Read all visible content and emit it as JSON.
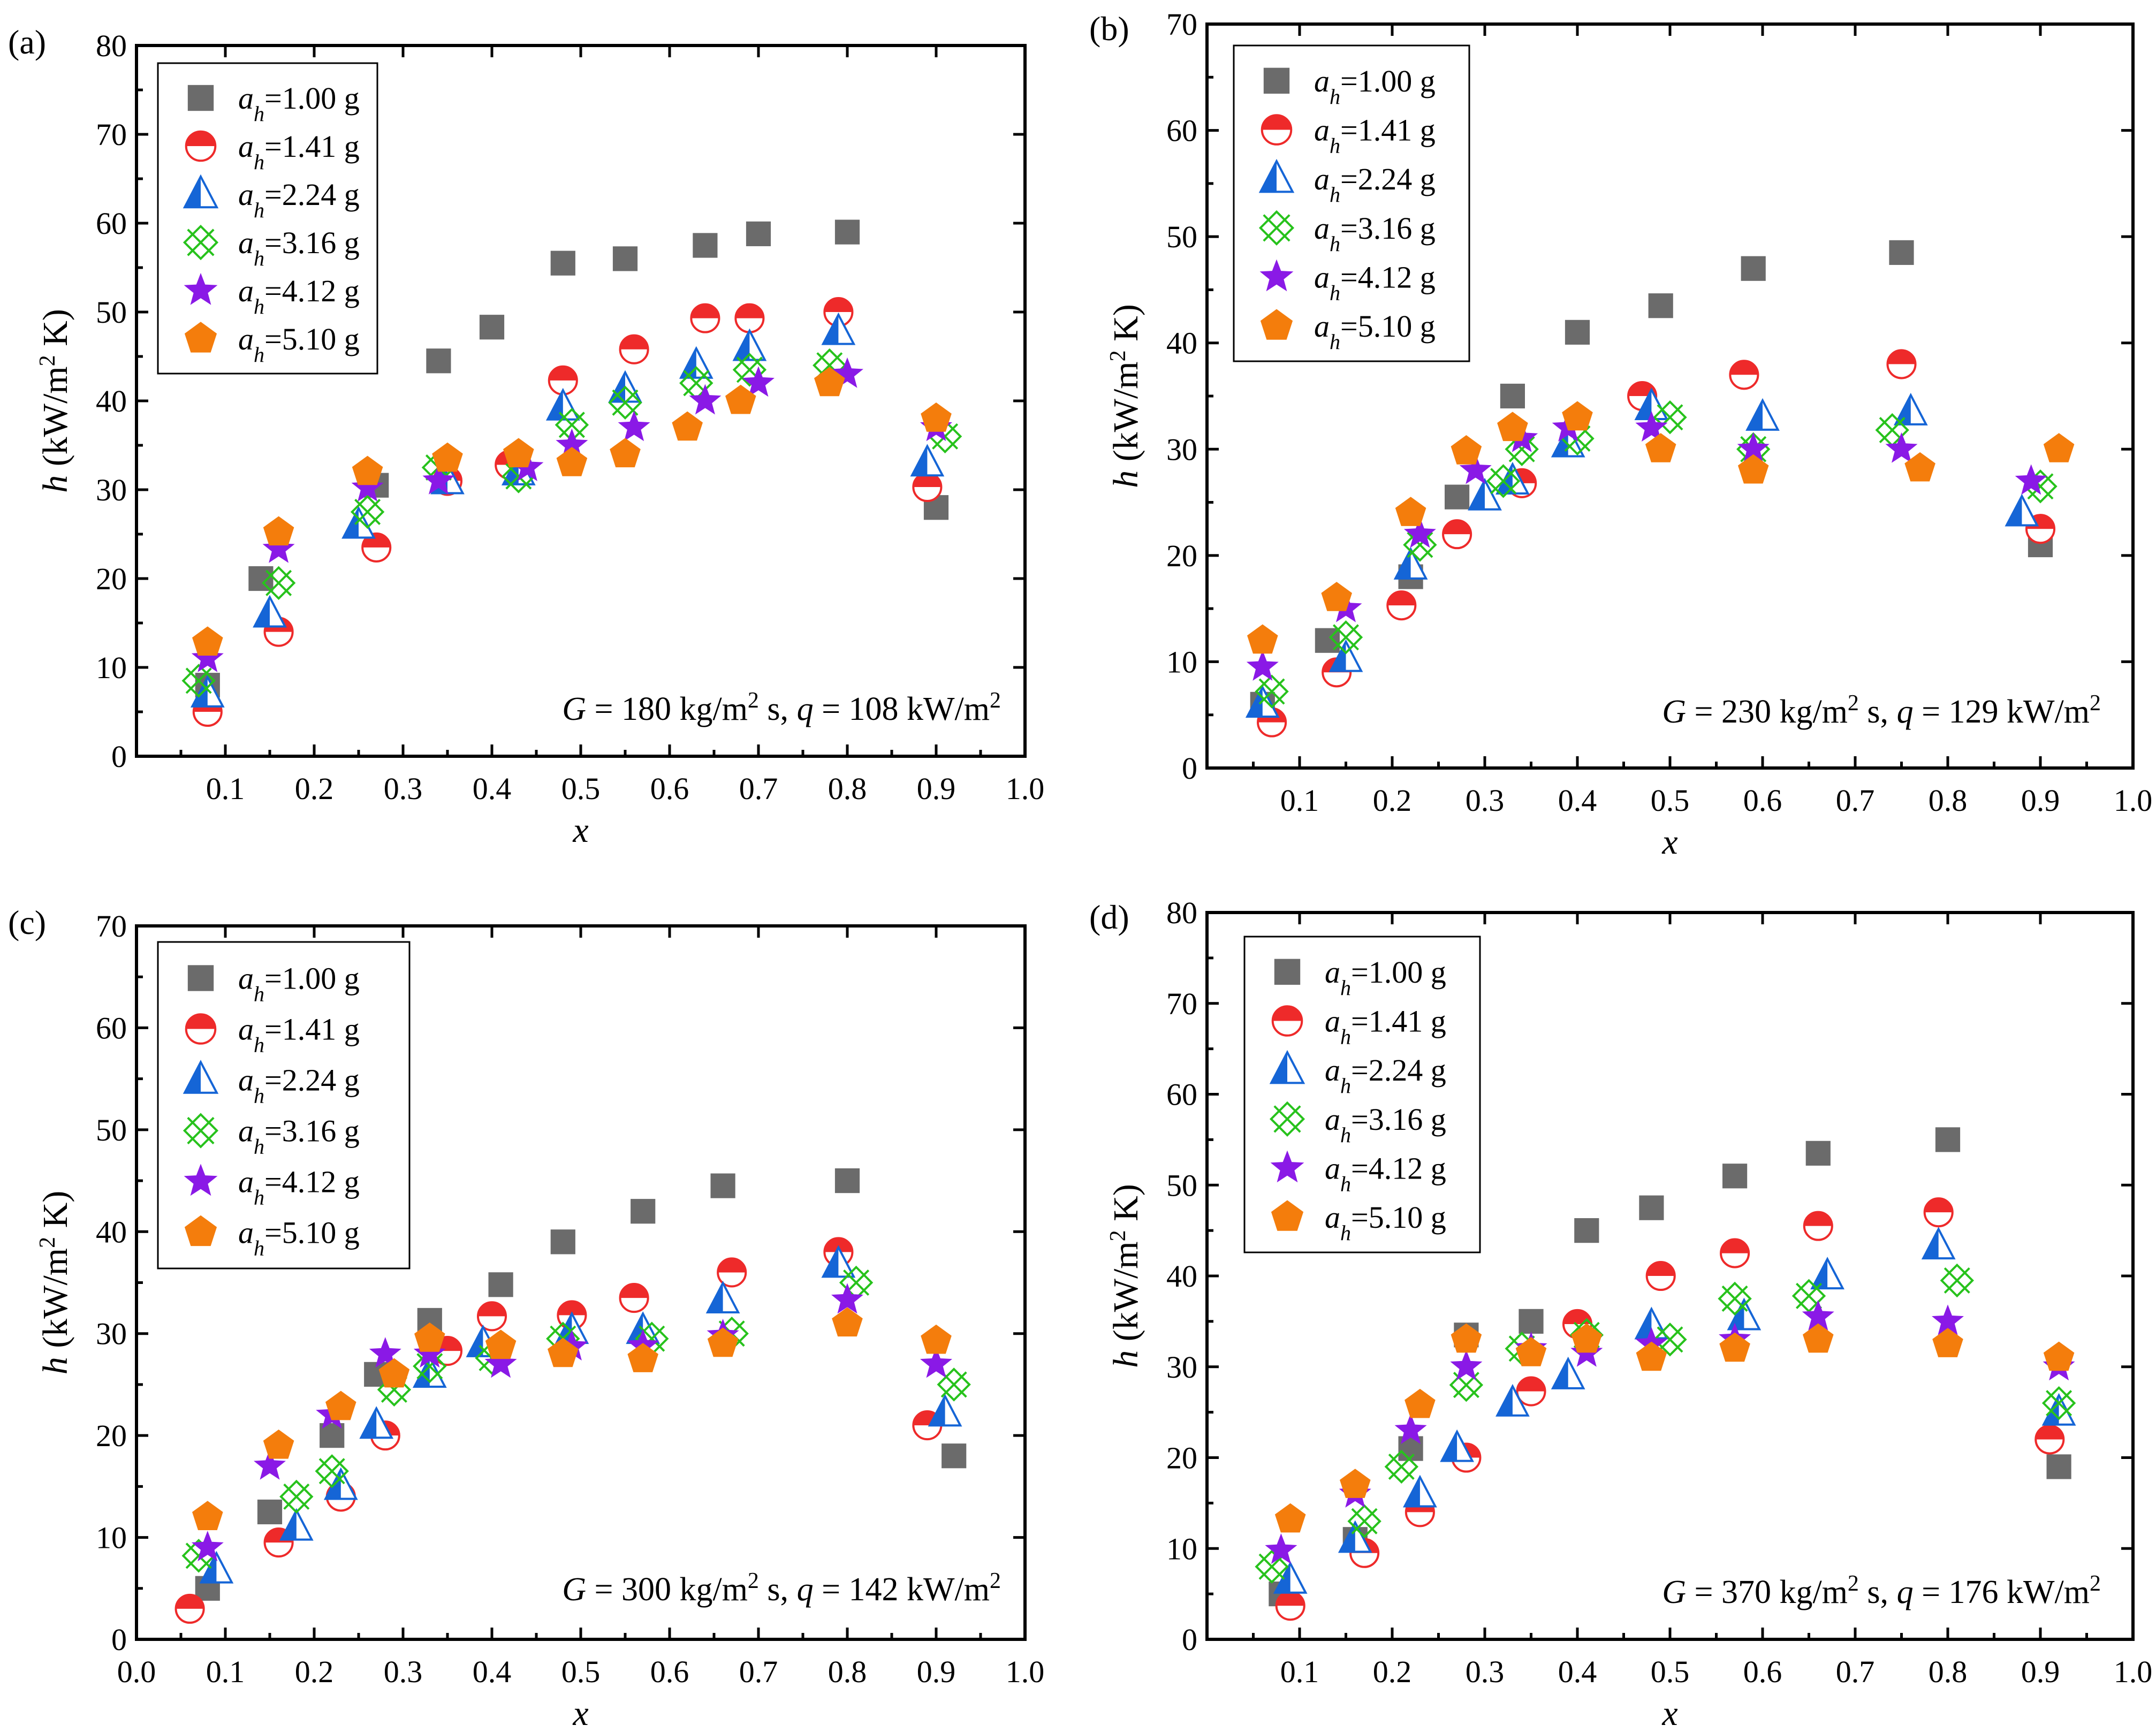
{
  "figure": {
    "series_styles": [
      {
        "name": "a_h=1.00 g",
        "marker": "square",
        "color": "#6b6b6b"
      },
      {
        "name": "a_h=1.41 g",
        "marker": "half-circle",
        "color": "#ee2a2a"
      },
      {
        "name": "a_h=2.24 g",
        "marker": "half-triangle",
        "color": "#1565d6"
      },
      {
        "name": "a_h=3.16 g",
        "marker": "crossed-square",
        "color": "#27c21c"
      },
      {
        "name": "a_h=4.12 g",
        "marker": "star",
        "color": "#8a19e6"
      },
      {
        "name": "a_h=5.10 g",
        "marker": "pentagon",
        "color": "#f47d0c"
      }
    ]
  },
  "chart_data": [
    {
      "panel_label": "(a)",
      "type": "scatter",
      "xlabel": "x",
      "ylabel": "h (kW/m2 K)",
      "ylabel_parts": {
        "var": "h",
        "pre": " (kW/m",
        "sup": "2",
        "post": " K)"
      },
      "xlim": [
        0,
        1.0
      ],
      "ylim": [
        0,
        80
      ],
      "xticks": [
        0.1,
        0.2,
        0.3,
        0.4,
        0.5,
        0.6,
        0.7,
        0.8,
        0.9,
        1.0
      ],
      "xtick_labels": [
        "0.1",
        "0.2",
        "0.3",
        "0.4",
        "0.5",
        "0.6",
        "0.7",
        "0.8",
        "0.9",
        "1.0"
      ],
      "yticks": [
        0,
        10,
        20,
        30,
        40,
        50,
        60,
        70,
        80
      ],
      "ytick_labels": [
        "0",
        "10",
        "20",
        "30",
        "40",
        "50",
        "60",
        "70",
        "80"
      ],
      "legend_position": "top-left",
      "legend_labels": [
        {
          "var": "a",
          "sub": "h",
          "rest": "=1.00 g"
        },
        {
          "var": "a",
          "sub": "h",
          "rest": "=1.41 g"
        },
        {
          "var": "a",
          "sub": "h",
          "rest": "=2.24 g"
        },
        {
          "var": "a",
          "sub": "h",
          "rest": "=3.16 g"
        },
        {
          "var": "a",
          "sub": "h",
          "rest": "=4.12 g"
        },
        {
          "var": "a",
          "sub": "h",
          "rest": "=5.10 g"
        }
      ],
      "annotation": {
        "G": "G",
        "p1": " = 180 kg/m",
        "s1": "2",
        "p2": " s, ",
        "q": "q",
        "p3": " = 108 kW/m",
        "s2": "2"
      },
      "series": [
        {
          "name": "a_h=1.00 g",
          "x": [
            0.08,
            0.14,
            0.27,
            0.34,
            0.4,
            0.48,
            0.55,
            0.64,
            0.7,
            0.8,
            0.9
          ],
          "y": [
            8,
            20,
            30.5,
            44.5,
            48.3,
            55.5,
            56,
            57.5,
            58.8,
            59,
            28
          ]
        },
        {
          "name": "a_h=1.41 g",
          "x": [
            0.08,
            0.16,
            0.27,
            0.35,
            0.42,
            0.48,
            0.56,
            0.64,
            0.69,
            0.79,
            0.89
          ],
          "y": [
            5,
            14,
            23.5,
            31,
            32.8,
            42.3,
            45.8,
            49.3,
            49.3,
            50,
            30.3
          ]
        },
        {
          "name": "a_h=2.24 g",
          "x": [
            0.08,
            0.15,
            0.25,
            0.35,
            0.43,
            0.48,
            0.55,
            0.63,
            0.69,
            0.79,
            0.89
          ],
          "y": [
            7,
            16,
            26,
            31,
            32,
            39.3,
            41.3,
            44,
            46,
            47.8,
            33
          ]
        },
        {
          "name": "a_h=3.16 g",
          "x": [
            0.07,
            0.16,
            0.26,
            0.34,
            0.43,
            0.49,
            0.55,
            0.63,
            0.69,
            0.78,
            0.91
          ],
          "y": [
            8.5,
            19.5,
            27.5,
            32.5,
            31.5,
            37.3,
            39.8,
            42,
            43.5,
            44,
            36
          ]
        },
        {
          "name": "a_h=4.12 g",
          "x": [
            0.08,
            0.16,
            0.26,
            0.34,
            0.44,
            0.49,
            0.56,
            0.64,
            0.7,
            0.8,
            0.9
          ],
          "y": [
            11,
            23.3,
            30.2,
            31,
            32.5,
            35,
            37,
            40,
            42,
            43,
            37
          ]
        },
        {
          "name": "a_h=5.10 g",
          "x": [
            0.08,
            0.16,
            0.26,
            0.35,
            0.43,
            0.49,
            0.55,
            0.62,
            0.68,
            0.78,
            0.9
          ],
          "y": [
            12.8,
            25.2,
            32,
            33.5,
            34,
            33,
            34,
            37,
            40,
            42,
            38
          ]
        }
      ]
    },
    {
      "panel_label": "(b)",
      "type": "scatter",
      "xlabel": "x",
      "ylabel": "h (kW/m2 K)",
      "ylabel_parts": {
        "var": "h",
        "pre": " (kW/m",
        "sup": "2",
        "post": " K)"
      },
      "xlim": [
        0,
        1.0
      ],
      "ylim": [
        0,
        70
      ],
      "xticks": [
        0.1,
        0.2,
        0.3,
        0.4,
        0.5,
        0.6,
        0.7,
        0.8,
        0.9,
        1.0
      ],
      "xtick_labels": [
        "0.1",
        "0.2",
        "0.3",
        "0.4",
        "0.5",
        "0.6",
        "0.7",
        "0.8",
        "0.9",
        "1.0"
      ],
      "yticks": [
        0,
        10,
        20,
        30,
        40,
        50,
        60,
        70
      ],
      "ytick_labels": [
        "0",
        "10",
        "20",
        "30",
        "40",
        "50",
        "60",
        "70"
      ],
      "legend_position": "top-left",
      "legend_labels": [
        {
          "var": "a",
          "sub": "h",
          "rest": "=1.00 g"
        },
        {
          "var": "a",
          "sub": "h",
          "rest": "=1.41 g"
        },
        {
          "var": "a",
          "sub": "h",
          "rest": "=2.24 g"
        },
        {
          "var": "a",
          "sub": "h",
          "rest": "=3.16 g"
        },
        {
          "var": "a",
          "sub": "h",
          "rest": "=4.12 g"
        },
        {
          "var": "a",
          "sub": "h",
          "rest": "=5.10 g"
        }
      ],
      "annotation": {
        "G": "G",
        "p1": " = 230 kg/m",
        "s1": "2",
        "p2": " s, ",
        "q": "q",
        "p3": " = 129 kW/m",
        "s2": "2"
      },
      "series": [
        {
          "name": "a_h=1.00 g",
          "x": [
            0.06,
            0.13,
            0.22,
            0.27,
            0.33,
            0.4,
            0.49,
            0.59,
            0.75,
            0.9
          ],
          "y": [
            6,
            12,
            18,
            25.5,
            35,
            41,
            43.5,
            47,
            48.5,
            21
          ]
        },
        {
          "name": "a_h=1.41 g",
          "x": [
            0.07,
            0.14,
            0.21,
            0.27,
            0.34,
            0.47,
            0.58,
            0.75,
            0.9
          ],
          "y": [
            4.3,
            9,
            15.3,
            22,
            26.8,
            35,
            37,
            38,
            22.5
          ]
        },
        {
          "name": "a_h=2.24 g",
          "x": [
            0.06,
            0.15,
            0.22,
            0.3,
            0.33,
            0.39,
            0.48,
            0.6,
            0.76,
            0.88
          ],
          "y": [
            6,
            10.3,
            19,
            25.5,
            27,
            30.5,
            34,
            33,
            33.5,
            24
          ]
        },
        {
          "name": "a_h=3.16 g",
          "x": [
            0.07,
            0.15,
            0.23,
            0.32,
            0.34,
            0.4,
            0.5,
            0.59,
            0.74,
            0.9
          ],
          "y": [
            7.2,
            12.3,
            21,
            27,
            30,
            31,
            33,
            30,
            31.8,
            26.5
          ]
        },
        {
          "name": "a_h=4.12 g",
          "x": [
            0.06,
            0.15,
            0.23,
            0.29,
            0.34,
            0.39,
            0.48,
            0.59,
            0.75,
            0.89
          ],
          "y": [
            9.5,
            15,
            22,
            28,
            31,
            32,
            32,
            30,
            30,
            27
          ]
        },
        {
          "name": "a_h=5.10 g",
          "x": [
            0.06,
            0.14,
            0.22,
            0.28,
            0.33,
            0.4,
            0.49,
            0.59,
            0.77,
            0.92
          ],
          "y": [
            12,
            16,
            24,
            29.8,
            32,
            33,
            30,
            28,
            28.2,
            30
          ]
        }
      ]
    },
    {
      "panel_label": "(c)",
      "type": "scatter",
      "xlabel": "x",
      "ylabel": "h (kW/m2 K)",
      "ylabel_parts": {
        "var": "h",
        "pre": " (kW/m",
        "sup": "2",
        "post": " K)"
      },
      "xlim": [
        0,
        1.0
      ],
      "ylim": [
        0,
        70
      ],
      "xticks": [
        0.0,
        0.1,
        0.2,
        0.3,
        0.4,
        0.5,
        0.6,
        0.7,
        0.8,
        0.9,
        1.0
      ],
      "xtick_labels": [
        "0.0",
        "0.1",
        "0.2",
        "0.3",
        "0.4",
        "0.5",
        "0.6",
        "0.7",
        "0.8",
        "0.9",
        "1.0"
      ],
      "yticks": [
        0,
        10,
        20,
        30,
        40,
        50,
        60,
        70
      ],
      "ytick_labels": [
        "0",
        "10",
        "20",
        "30",
        "40",
        "50",
        "60",
        "70"
      ],
      "legend_position": "top-left",
      "legend_labels": [
        {
          "var": "a",
          "sub": "h",
          "rest": "=1.00 g"
        },
        {
          "var": "a",
          "sub": "h",
          "rest": "=1.41 g"
        },
        {
          "var": "a",
          "sub": "h",
          "rest": "=2.24 g"
        },
        {
          "var": "a",
          "sub": "h",
          "rest": "=3.16 g"
        },
        {
          "var": "a",
          "sub": "h",
          "rest": "=4.12 g"
        },
        {
          "var": "a",
          "sub": "h",
          "rest": "=5.10 g"
        }
      ],
      "annotation": {
        "G": "G",
        "p1": " = 300 kg/m",
        "s1": "2",
        "p2": " s, ",
        "q": "q",
        "p3": " = 142 kW/m",
        "s2": "2"
      },
      "series": [
        {
          "name": "a_h=1.00 g",
          "x": [
            0.08,
            0.15,
            0.22,
            0.27,
            0.33,
            0.41,
            0.48,
            0.57,
            0.66,
            0.8,
            0.92
          ],
          "y": [
            5,
            12.5,
            20,
            26,
            31.3,
            34.8,
            39,
            42,
            44.5,
            45,
            18
          ]
        },
        {
          "name": "a_h=1.41 g",
          "x": [
            0.06,
            0.16,
            0.23,
            0.28,
            0.35,
            0.4,
            0.49,
            0.56,
            0.67,
            0.79,
            0.89
          ],
          "y": [
            3,
            9.5,
            14,
            20,
            28.3,
            31.7,
            31.8,
            33.5,
            36,
            38,
            21
          ]
        },
        {
          "name": "a_h=2.24 g",
          "x": [
            0.09,
            0.18,
            0.23,
            0.27,
            0.33,
            0.39,
            0.49,
            0.57,
            0.66,
            0.79,
            0.91
          ],
          "y": [
            6.8,
            11,
            15,
            21,
            26,
            29,
            30.3,
            30.3,
            33.3,
            36.8,
            22.2
          ]
        },
        {
          "name": "a_h=3.16 g",
          "x": [
            0.07,
            0.18,
            0.22,
            0.29,
            0.33,
            0.4,
            0.48,
            0.58,
            0.67,
            0.81,
            0.92
          ],
          "y": [
            8.2,
            14,
            16.5,
            24.5,
            26.8,
            27.6,
            29.5,
            29.5,
            30,
            35,
            25
          ]
        },
        {
          "name": "a_h=4.12 g",
          "x": [
            0.08,
            0.15,
            0.22,
            0.28,
            0.33,
            0.41,
            0.49,
            0.57,
            0.66,
            0.8,
            0.9
          ],
          "y": [
            9,
            17,
            22,
            28,
            28,
            27,
            28.7,
            28.8,
            29.8,
            33.3,
            27
          ]
        },
        {
          "name": "a_h=5.10 g",
          "x": [
            0.08,
            0.16,
            0.23,
            0.29,
            0.33,
            0.41,
            0.48,
            0.57,
            0.66,
            0.8,
            0.9
          ],
          "y": [
            12,
            19,
            22.8,
            26,
            29.5,
            28.8,
            28,
            27.5,
            29,
            31,
            29.3
          ]
        }
      ]
    },
    {
      "panel_label": "(d)",
      "type": "scatter",
      "xlabel": "x",
      "ylabel": "h (kW/m2 K)",
      "ylabel_parts": {
        "var": "h",
        "pre": " (kW/m",
        "sup": "2",
        "post": " K)"
      },
      "xlim": [
        0,
        1.0
      ],
      "ylim": [
        0,
        80
      ],
      "xticks": [
        0.1,
        0.2,
        0.3,
        0.4,
        0.5,
        0.6,
        0.7,
        0.8,
        0.9,
        1.0
      ],
      "xtick_labels": [
        "0.1",
        "0.2",
        "0.3",
        "0.4",
        "0.5",
        "0.6",
        "0.7",
        "0.8",
        "0.9",
        "1.0"
      ],
      "yticks": [
        0,
        10,
        20,
        30,
        40,
        50,
        60,
        70,
        80
      ],
      "ytick_labels": [
        "0",
        "10",
        "20",
        "30",
        "40",
        "50",
        "60",
        "70",
        "80"
      ],
      "legend_position": "top-left",
      "legend_labels": [
        {
          "var": "a",
          "sub": "h",
          "rest": "=1.00 g"
        },
        {
          "var": "a",
          "sub": "h",
          "rest": "=1.41 g"
        },
        {
          "var": "a",
          "sub": "h",
          "rest": "=2.24 g"
        },
        {
          "var": "a",
          "sub": "h",
          "rest": "=3.16 g"
        },
        {
          "var": "a",
          "sub": "h",
          "rest": "=4.12 g"
        },
        {
          "var": "a",
          "sub": "h",
          "rest": "=5.10 g"
        }
      ],
      "annotation": {
        "G": "G",
        "p1": " = 370 kg/m",
        "s1": "2",
        "p2": " s, ",
        "q": "q",
        "p3": " = 176 kW/m",
        "s2": "2"
      },
      "series": [
        {
          "name": "a_h=1.00 g",
          "x": [
            0.08,
            0.16,
            0.22,
            0.28,
            0.35,
            0.41,
            0.48,
            0.57,
            0.66,
            0.8,
            0.92
          ],
          "y": [
            5,
            11,
            21,
            33.5,
            35,
            45,
            47.5,
            51,
            53.5,
            55,
            19
          ]
        },
        {
          "name": "a_h=1.41 g",
          "x": [
            0.09,
            0.17,
            0.23,
            0.28,
            0.35,
            0.4,
            0.49,
            0.57,
            0.66,
            0.79,
            0.91
          ],
          "y": [
            3.7,
            9.5,
            14,
            20,
            27.3,
            34.7,
            40,
            42.5,
            45.5,
            47,
            22
          ]
        },
        {
          "name": "a_h=2.24 g",
          "x": [
            0.09,
            0.16,
            0.23,
            0.27,
            0.33,
            0.39,
            0.48,
            0.58,
            0.67,
            0.79,
            0.92
          ],
          "y": [
            6.5,
            11,
            16,
            21,
            26,
            29,
            34.5,
            35.5,
            40,
            43.3,
            25
          ]
        },
        {
          "name": "a_h=3.16 g",
          "x": [
            0.07,
            0.17,
            0.21,
            0.28,
            0.34,
            0.41,
            0.5,
            0.57,
            0.65,
            0.81,
            0.92
          ],
          "y": [
            8,
            13,
            19,
            28,
            32,
            33.5,
            33,
            37.5,
            37.8,
            39.5,
            26
          ]
        },
        {
          "name": "a_h=4.12 g",
          "x": [
            0.08,
            0.16,
            0.22,
            0.28,
            0.35,
            0.41,
            0.48,
            0.57,
            0.66,
            0.8,
            0.92
          ],
          "y": [
            9.8,
            16,
            23,
            30,
            32,
            31.5,
            32.5,
            33,
            35.5,
            35,
            30
          ]
        },
        {
          "name": "a_h=5.10 g",
          "x": [
            0.09,
            0.16,
            0.23,
            0.28,
            0.35,
            0.41,
            0.48,
            0.57,
            0.66,
            0.8,
            0.92
          ],
          "y": [
            13.2,
            17,
            25.8,
            33,
            31.5,
            33,
            31,
            32,
            33,
            32.5,
            31
          ]
        }
      ]
    }
  ]
}
